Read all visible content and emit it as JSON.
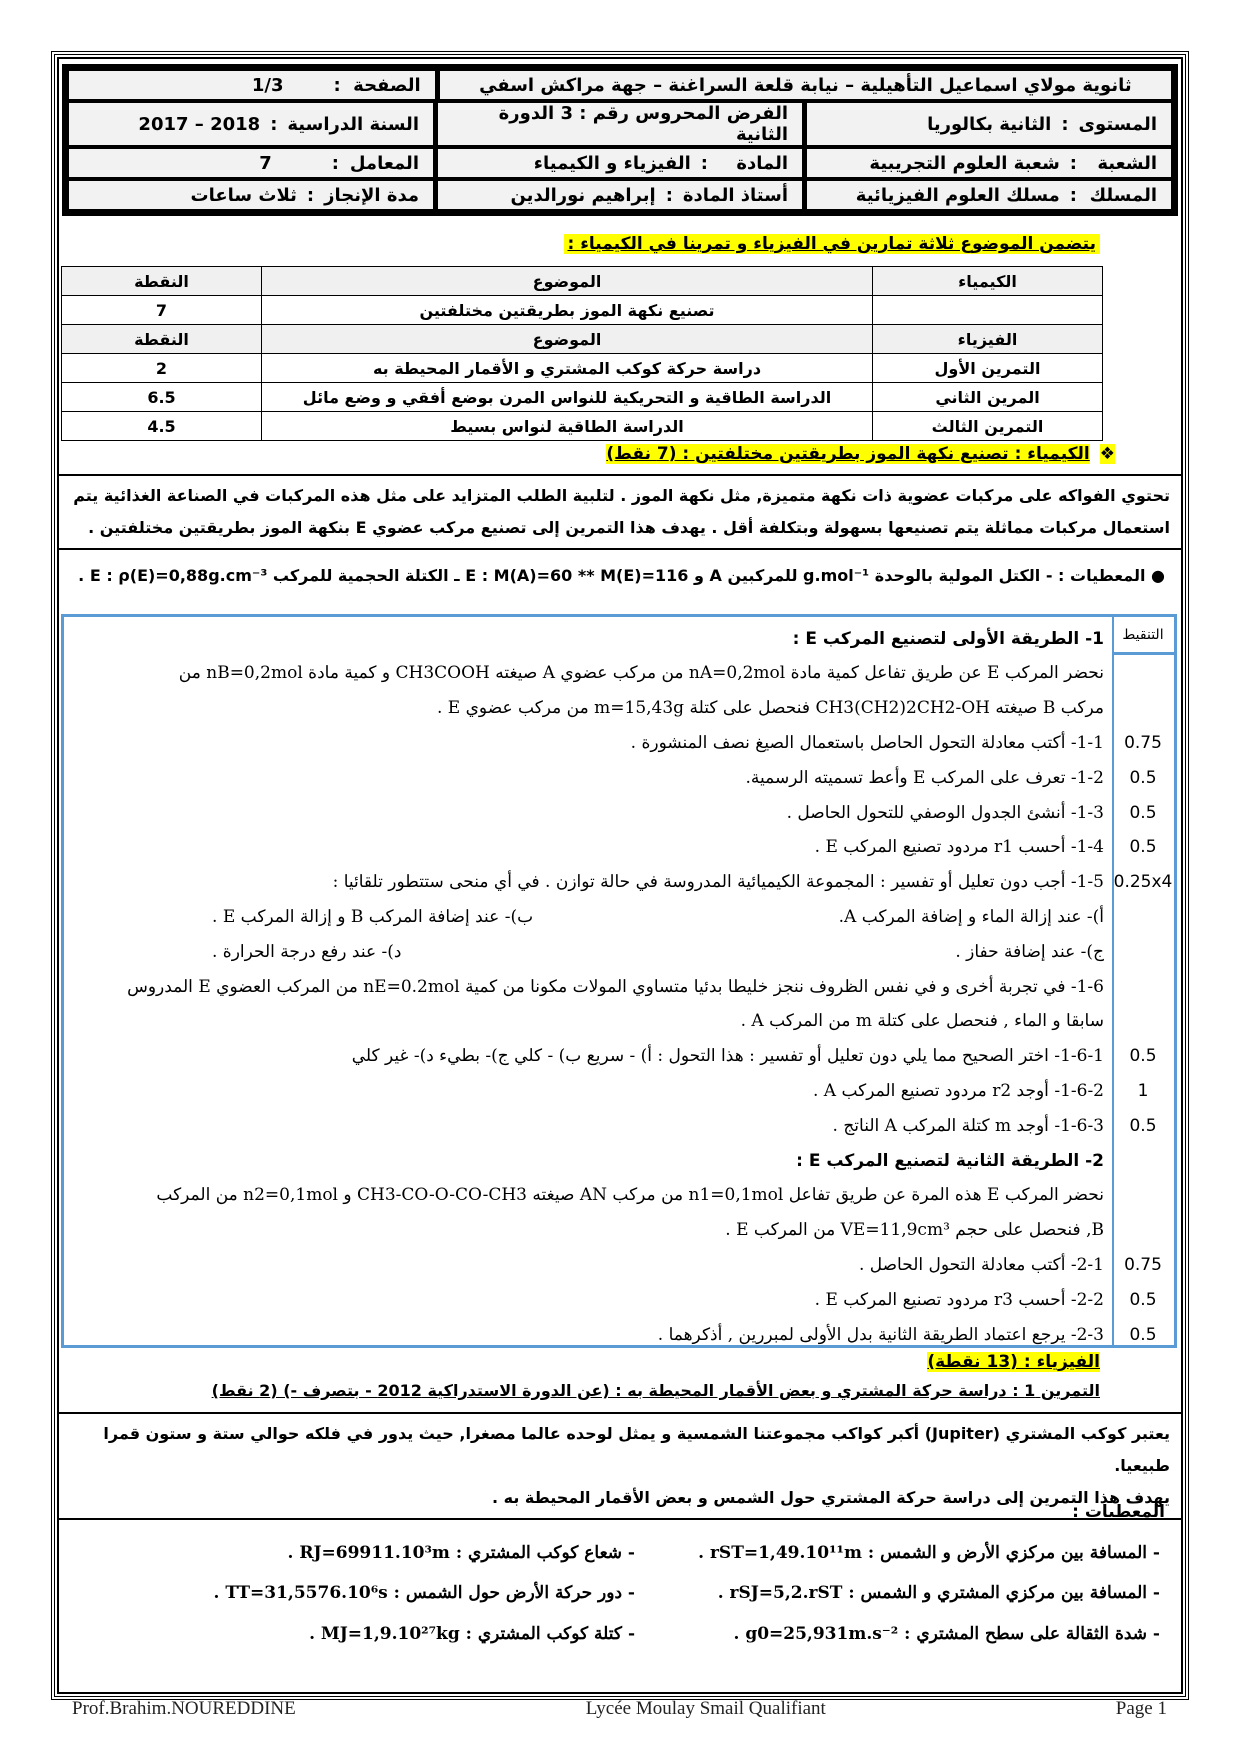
{
  "header": {
    "school": "ثانوية مولاي اسماعيل التأهيلية – نيابة قلعة السراغنة – جهة مراكش اسفي",
    "page_label": "الصفحة",
    "page_value": "1/3",
    "level_label": "المستوى",
    "level_value": "الثانية بكالوريا",
    "exam": "الفرض المحروس رقم  : 3  الدورة الثانية",
    "year_label": "السنة الدراسية",
    "year_value": "2018 – 2017",
    "branch_label": "الشعبة",
    "branch_value": "شعبة العلوم التجريبية",
    "subject_label": "المادة",
    "subject_value": "الفيزياء و الكيمياء",
    "coef_label": "المعامل",
    "coef_value": "7",
    "track_label": "المسلك",
    "track_value": "مسلك العلوم الفيزيائية",
    "teacher_label": "أستاذ المادة",
    "teacher_value": "إبراهيم نورالدين",
    "duration_label": "مدة الإنجاز",
    "duration_value": "ثلاث ساعات",
    "sep": ":"
  },
  "intro": "يتضمن الموضوع ثلاثة تمارين في الفيزياء و تمرينا في الكيمياء :",
  "summary": {
    "chem_head": [
      "الكيمياء",
      "الموضوع",
      "النقطة"
    ],
    "chem_row": [
      "",
      "تصنيع نكهة الموز بطريقتين مختلفتين",
      "7"
    ],
    "phys_head": [
      "الفيزياء",
      "الموضوع",
      "النقطة"
    ],
    "phys_rows": [
      [
        "التمرين الأول",
        "دراسة حركة كوكب المشتري و الأقمار المحيطة به",
        "2"
      ],
      [
        "المرين الثاني",
        "الدراسة الطاقية و التحريكية للنواس المرن بوضع أفقي و وضع مائل",
        "6.5"
      ],
      [
        "التمرين الثالث",
        "الدراسة الطاقية لنواس بسيط",
        "4.5"
      ]
    ]
  },
  "chemistry": {
    "title": "الكيمياء : تصنيع نكهة الموز بطريقتين مختلفتين : (7 نقط)",
    "bullet": "❖",
    "para1": "تحتوي الفواكه على مركبات عضوية ذات نكهة متميزة, مثل نكهة الموز . لتلبية الطلب المتزايد على مثل هذه المركبات في الصناعة الغذائية يتم",
    "para2": "استعمال مركبات مماثلة يتم تصنيعها بسهولة وبتكلفة أقل .  يهدف هذا التمرين إلى تصنيع مركب عضوي E بنكهة الموز بطريقتين مختلفتين .",
    "data": "● المعطيات : - الكتل المولية بالوحدة g.mol⁻¹ للمركبين A و E : M(A)=60 ** M(E)=116 ـ الكتلة الحجمية للمركب E : ρ(E)=0,88g.cm⁻³ .",
    "grading_label": "التنقيط",
    "lines": [
      {
        "t": "1- الطريقة الأولى لتصنيع المركب E :",
        "s": "",
        "h": true
      },
      {
        "t": "نحضر المركب E عن طريق تفاعل كمية مادة nA=0,2mol من مركب عضوي A صيغته  CH3COOH  و كمية مادة nB=0,2mol من",
        "s": ""
      },
      {
        "t": "مركب  B  صيغته CH3(CH2)2CH2-OH فنحصل على كتلة m=15,43g من مركب عضوي E .",
        "s": ""
      },
      {
        "t": "1-1- أكتب معادلة التحول الحاصل باستعمال الصيغ نصف المنشورة .",
        "s": "0.75"
      },
      {
        "t": "1-2- تعرف على المركب E وأعط تسميته الرسمية.",
        "s": "0.5"
      },
      {
        "t": "1-3- أنشئ الجدول الوصفي للتحول الحاصل .",
        "s": "0.5"
      },
      {
        "t": "1-4- أحسب  r1  مردود تصنيع المركب E .",
        "s": "0.5"
      },
      {
        "t": "1-5- أجب دون تعليل أو تفسير :  المجموعة الكيميائية المدروسة في حالة توازن . في أي منحى ستتطور تلقائيا :",
        "s": "0.25x4"
      },
      {
        "t": "أ)- عند إزالة الماء و إضافة المركب A.",
        "t2": "ب)- عند إضافة المركب B و إزالة المركب E .",
        "s": ""
      },
      {
        "t": "ج)- عند إضافة حفاز .",
        "t2": "د)- عند رفع درجة الحرارة .",
        "s": ""
      },
      {
        "t": "1-6- في تجربة أخرى و في نفس الظروف ننجز خليطا بدئيا متساوي المولات مكونا من كمية nE=0.2mol من المركب العضوي E المدروس",
        "s": ""
      },
      {
        "t": "سابقا و الماء , فنحصل على كتلة m من المركب A .",
        "s": ""
      },
      {
        "t": "1-6-1- اختر الصحيح مما يلي دون تعليل أو تفسير : هذا التحول :  أ) - سريع        ب) - كلي        ج)- بطيء        د)- غير كلي",
        "s": "0.5"
      },
      {
        "t": "1-6-2- أوجد r2  مردود  تصنيع المركب A .",
        "s": "1"
      },
      {
        "t": "1-6-3- أوجد m كتلة المركب A الناتج .",
        "s": "0.5"
      },
      {
        "t": "2- الطريقة الثانية لتصنيع المركب E :",
        "s": "",
        "h": true
      },
      {
        "t": "نحضر المركب E  هذه المرة عن طريق تفاعل n1=0,1mol من مركب AN صيغته CH3-CO-O-CO-CH3  و n2=0,1mol من المركب",
        "s": ""
      },
      {
        "t": "B, فنحصل على حجم VE=11,9cm³ من المركب E .",
        "s": ""
      },
      {
        "t": "2-1- أكتب معادلة التحول الحاصل .",
        "s": "0.75"
      },
      {
        "t": "2-2- أحسب  r3  مردود تصنيع المركب E .",
        "s": "0.5"
      },
      {
        "t": "2-3- يرجع اعتماد الطريقة الثانية بدل الأولى لمبررين , أذكرهما .",
        "s": "0.5"
      }
    ]
  },
  "physics": {
    "title": "الفيزياء : (13 نقطة)",
    "ex1_title": "التمرين 1 : دراسة حركة المشتري و بعض الأقمار المحيطة به : (عن الدورة الاستدراكية 2012 - بتصرف -)  (2 نقط)",
    "para1": "يعتبر كوكب المشتري (Jupiter) أكبر كواكب مجموعتنا الشمسية و يمثل لوحده عالما مصغرا, حيث يدور في فلكه حوالي ستة و ستون قمرا طبيعيا.",
    "para2": "يهدف هذا التمرين إلى دراسة حركة المشتري حول الشمس و بعض الأقمار المحيطة به .",
    "data_label": "المعطيات :",
    "data": [
      [
        "- المسافة بين مركزي الأرض و الشمس  :  rST=1,49.10¹¹m  .",
        "- شعاع كوكب المشتري :  RJ=69911.10³m ."
      ],
      [
        "- المسافة بين مركزي المشتري و الشمس : rSJ=5,2.rST .",
        "- دور حركة الأرض حول الشمس : TT=31,5576.10⁶s ."
      ],
      [
        "- شدة الثقالة على سطح المشتري : g0=25,931m.s⁻²  .",
        "- كتلة كوكب المشتري  :  MJ=1,9.10²⁷kg ."
      ]
    ]
  },
  "footer": {
    "left": "Prof.Brahim.NOUREDDINE",
    "center": "Lycée Moulay Smail Qualifiant",
    "right": "Page 1"
  }
}
